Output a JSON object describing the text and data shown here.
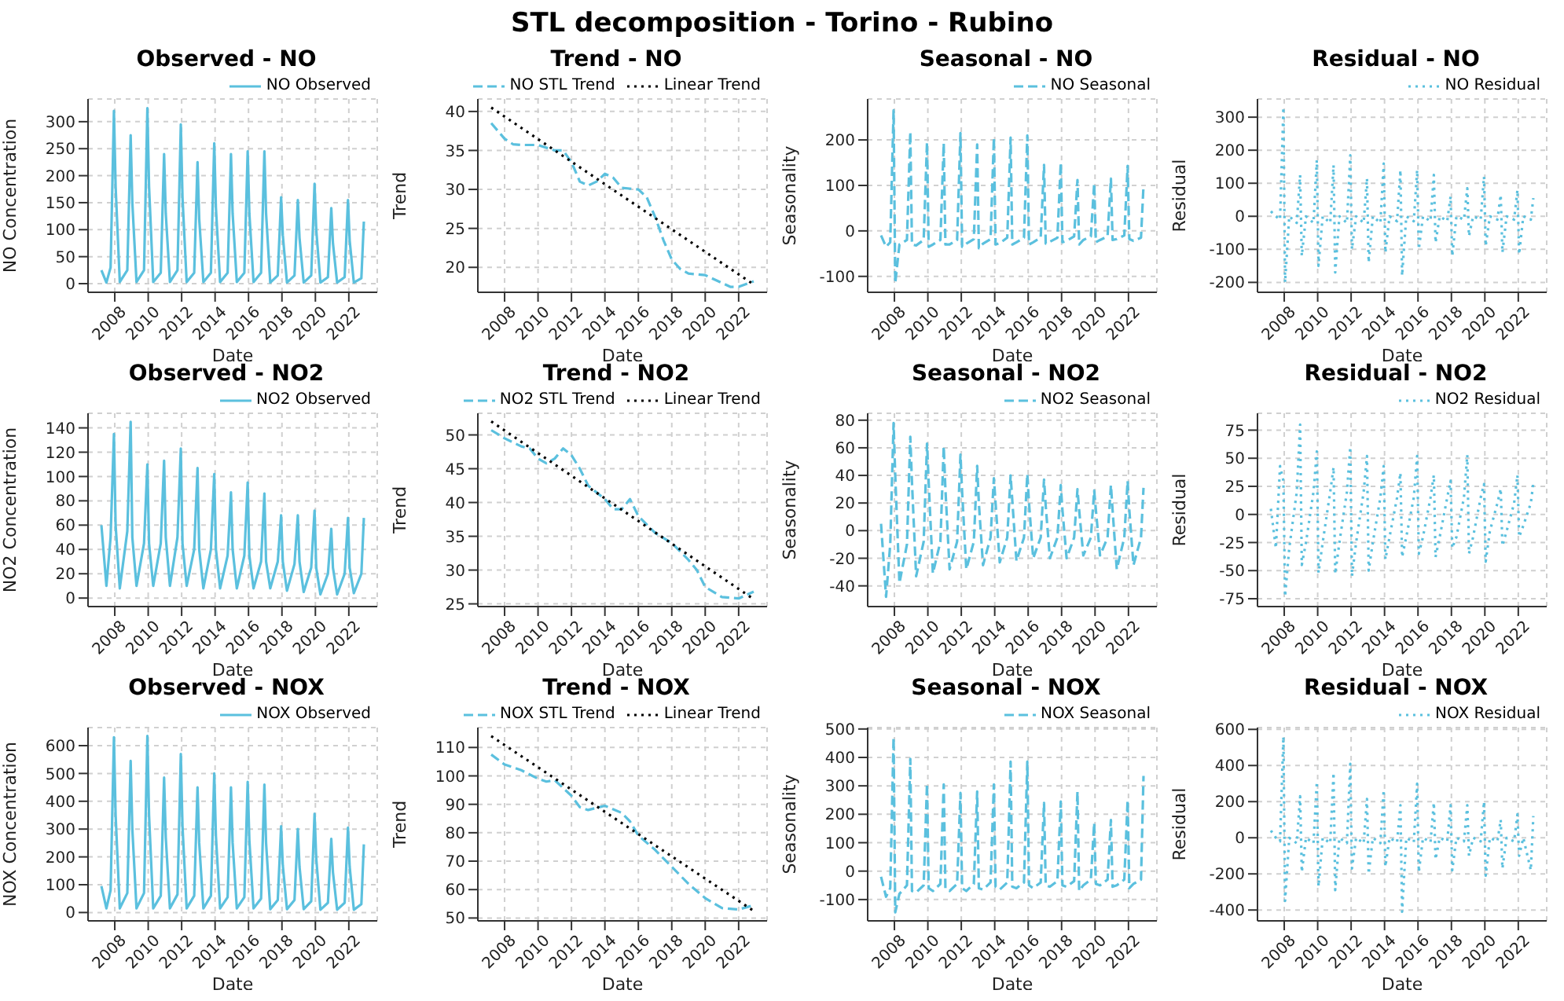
{
  "chart_data": [
    {
      "type": "line",
      "title": "Observed - NO",
      "annotations": [
        "STL decomposition - Torino - Rubino"
      ],
      "xlabel": "Date",
      "ylabel": "NO Concentration",
      "xlim": [
        2006.4,
        2023.7
      ],
      "xticks": [
        2008,
        2010,
        2012,
        2014,
        2016,
        2018,
        2020,
        2022
      ],
      "ylim": [
        -16,
        342
      ],
      "yticks": [
        0,
        50,
        100,
        150,
        200,
        250,
        300
      ],
      "grid": true,
      "legend": "top right",
      "x": [
        2007.2,
        2007.5,
        2007.75,
        2007.95,
        2008.05,
        2008.3,
        2008.75,
        2008.95,
        2009.05,
        2009.3,
        2009.75,
        2009.95,
        2010.05,
        2010.3,
        2010.75,
        2010.95,
        2011.05,
        2011.3,
        2011.75,
        2011.95,
        2012.05,
        2012.3,
        2012.75,
        2012.95,
        2013.05,
        2013.3,
        2013.75,
        2013.95,
        2014.05,
        2014.3,
        2014.75,
        2014.95,
        2015.05,
        2015.3,
        2015.75,
        2015.95,
        2016.05,
        2016.3,
        2016.75,
        2016.95,
        2017.05,
        2017.3,
        2017.75,
        2017.95,
        2018.05,
        2018.3,
        2018.75,
        2018.95,
        2019.05,
        2019.3,
        2019.75,
        2019.95,
        2020.05,
        2020.3,
        2020.75,
        2020.95,
        2021.05,
        2021.3,
        2021.75,
        2021.95,
        2022.05,
        2022.3,
        2022.75,
        2022.9
      ],
      "series": [
        {
          "name": "NO Observed",
          "color": "#5bc0de",
          "line_style": "solid",
          "values": [
            25,
            2,
            30,
            320,
            180,
            3,
            25,
            275,
            150,
            3,
            25,
            325,
            180,
            3,
            20,
            240,
            130,
            3,
            25,
            295,
            160,
            3,
            20,
            225,
            120,
            3,
            20,
            260,
            140,
            3,
            20,
            240,
            130,
            3,
            20,
            245,
            130,
            3,
            20,
            245,
            130,
            2,
            15,
            160,
            90,
            2,
            15,
            155,
            85,
            2,
            15,
            185,
            100,
            2,
            12,
            140,
            75,
            2,
            12,
            155,
            80,
            2,
            10,
            115
          ]
        }
      ]
    },
    {
      "type": "line",
      "title": "Trend - NO",
      "xlabel": "Date",
      "ylabel": "Trend",
      "xlim": [
        2006.4,
        2023.7
      ],
      "xticks": [
        2008,
        2010,
        2012,
        2014,
        2016,
        2018,
        2020,
        2022
      ],
      "ylim": [
        16.8,
        41.6
      ],
      "yticks": [
        20,
        25,
        30,
        35,
        40
      ],
      "grid": true,
      "legend": "top right",
      "series": [
        {
          "name": "NO STL Trend",
          "color": "#5bc0de",
          "line_style": "dashed",
          "x": [
            2007.2,
            2008,
            2008.5,
            2009,
            2010,
            2011,
            2011.5,
            2012,
            2012.5,
            2013,
            2013.5,
            2014,
            2014.5,
            2015,
            2016,
            2016.5,
            2017,
            2017.5,
            2018,
            2018.5,
            2019,
            2020,
            2021,
            2021.5,
            2022,
            2022.9
          ],
          "values": [
            38.5,
            36.5,
            35.8,
            35.7,
            35.7,
            35,
            35,
            33.5,
            31,
            30.5,
            31,
            32,
            31.5,
            30.2,
            30,
            29,
            26.5,
            23.5,
            21,
            19.8,
            19.2,
            19,
            18,
            17.5,
            17.5,
            18.2
          ]
        },
        {
          "name": "Linear Trend",
          "color": "#000000",
          "line_style": "dotted",
          "x": [
            2007.2,
            2022.9
          ],
          "values": [
            40.5,
            17.8
          ]
        }
      ]
    },
    {
      "type": "line",
      "title": "Seasonal - NO",
      "xlabel": "Date",
      "ylabel": "Seasonality",
      "xlim": [
        2006.4,
        2023.7
      ],
      "xticks": [
        2008,
        2010,
        2012,
        2014,
        2016,
        2018,
        2020,
        2022
      ],
      "ylim": [
        -135,
        290
      ],
      "yticks": [
        -100,
        0,
        100,
        200
      ],
      "grid": true,
      "legend": "top right",
      "x": [
        2007.2,
        2007.5,
        2007.75,
        2007.95,
        2008.05,
        2008.3,
        2008.75,
        2008.95,
        2009.05,
        2009.3,
        2009.75,
        2009.95,
        2010.05,
        2010.3,
        2010.75,
        2010.95,
        2011.05,
        2011.3,
        2011.75,
        2011.95,
        2012.05,
        2012.3,
        2012.75,
        2012.95,
        2013.05,
        2013.3,
        2013.75,
        2013.95,
        2014.05,
        2014.3,
        2014.75,
        2014.95,
        2015.05,
        2015.3,
        2015.75,
        2015.95,
        2016.05,
        2016.3,
        2016.75,
        2016.95,
        2017.05,
        2017.3,
        2017.75,
        2017.95,
        2018.05,
        2018.3,
        2018.75,
        2018.95,
        2019.05,
        2019.3,
        2019.75,
        2019.95,
        2020.05,
        2020.3,
        2020.75,
        2020.95,
        2021.05,
        2021.3,
        2021.75,
        2021.95,
        2022.05,
        2022.3,
        2022.75,
        2022.9
      ],
      "series": [
        {
          "name": "NO Seasonal",
          "color": "#5bc0de",
          "line_style": "dashed",
          "values": [
            -10,
            -35,
            -25,
            265,
            -115,
            -30,
            -20,
            218,
            -30,
            -32,
            -20,
            195,
            -35,
            -30,
            -20,
            193,
            -30,
            -30,
            -20,
            215,
            -35,
            -28,
            -18,
            190,
            -38,
            -28,
            -18,
            205,
            -30,
            -27,
            -15,
            205,
            -30,
            -25,
            -15,
            210,
            -30,
            -25,
            -15,
            145,
            -28,
            -24,
            -15,
            150,
            -25,
            -22,
            -12,
            112,
            -30,
            -20,
            -12,
            105,
            -25,
            -20,
            -12,
            115,
            -20,
            -18,
            -10,
            143,
            -18,
            -22,
            -15,
            100
          ]
        }
      ]
    },
    {
      "type": "line",
      "title": "Residual - NO",
      "xlabel": "Date",
      "ylabel": "Residual",
      "xlim": [
        2006.4,
        2023.7
      ],
      "xticks": [
        2008,
        2010,
        2012,
        2014,
        2016,
        2018,
        2020,
        2022
      ],
      "ylim": [
        -230,
        355
      ],
      "yticks": [
        -200,
        -100,
        0,
        100,
        200,
        300
      ],
      "grid": true,
      "legend": "top right",
      "x": [
        2007.2,
        2007.5,
        2007.75,
        2007.95,
        2008.05,
        2008.3,
        2008.75,
        2008.95,
        2009.05,
        2009.3,
        2009.75,
        2009.95,
        2010.05,
        2010.3,
        2010.75,
        2010.95,
        2011.05,
        2011.3,
        2011.75,
        2011.95,
        2012.05,
        2012.3,
        2012.75,
        2012.95,
        2013.05,
        2013.3,
        2013.75,
        2013.95,
        2014.05,
        2014.3,
        2014.75,
        2014.95,
        2015.05,
        2015.3,
        2015.75,
        2015.95,
        2016.05,
        2016.3,
        2016.75,
        2016.95,
        2017.05,
        2017.3,
        2017.75,
        2017.95,
        2018.05,
        2018.3,
        2018.75,
        2018.95,
        2019.05,
        2019.3,
        2019.75,
        2019.95,
        2020.05,
        2020.3,
        2020.75,
        2020.95,
        2021.05,
        2021.3,
        2021.75,
        2021.95,
        2022.05,
        2022.3,
        2022.75,
        2022.9
      ],
      "series": [
        {
          "name": "NO Residual",
          "color": "#5bc0de",
          "line_style": "dotted",
          "values": [
            15,
            0,
            -10,
            330,
            -200,
            0,
            -20,
            125,
            -120,
            0,
            -20,
            170,
            -150,
            0,
            -20,
            155,
            -170,
            0,
            -20,
            185,
            -100,
            0,
            -20,
            115,
            -140,
            0,
            -20,
            160,
            -110,
            0,
            -15,
            140,
            -180,
            0,
            -15,
            140,
            -100,
            0,
            -15,
            125,
            -80,
            0,
            -15,
            60,
            -120,
            0,
            -10,
            85,
            -60,
            0,
            -10,
            120,
            -90,
            0,
            -10,
            65,
            -110,
            0,
            -10,
            80,
            -115,
            0,
            -10,
            55
          ]
        }
      ]
    },
    {
      "type": "line",
      "title": "Observed - NO2",
      "xlabel": "Date",
      "ylabel": "NO2 Concentration",
      "xlim": [
        2006.4,
        2023.7
      ],
      "xticks": [
        2008,
        2010,
        2012,
        2014,
        2016,
        2018,
        2020,
        2022
      ],
      "ylim": [
        -7,
        152
      ],
      "yticks": [
        0,
        20,
        40,
        60,
        80,
        100,
        120,
        140
      ],
      "grid": true,
      "legend": "top right",
      "x": [
        2007.2,
        2007.5,
        2007.75,
        2007.95,
        2008.05,
        2008.3,
        2008.75,
        2008.95,
        2009.05,
        2009.3,
        2009.75,
        2009.95,
        2010.05,
        2010.3,
        2010.75,
        2010.95,
        2011.05,
        2011.3,
        2011.75,
        2011.95,
        2012.05,
        2012.3,
        2012.75,
        2012.95,
        2013.05,
        2013.3,
        2013.75,
        2013.95,
        2014.05,
        2014.3,
        2014.75,
        2014.95,
        2015.05,
        2015.3,
        2015.75,
        2015.95,
        2016.05,
        2016.3,
        2016.75,
        2016.95,
        2017.05,
        2017.3,
        2017.75,
        2017.95,
        2018.05,
        2018.3,
        2018.75,
        2018.95,
        2019.05,
        2019.3,
        2019.75,
        2019.95,
        2020.05,
        2020.3,
        2020.75,
        2020.95,
        2021.05,
        2021.3,
        2021.75,
        2021.95,
        2022.05,
        2022.3,
        2022.75,
        2022.9
      ],
      "series": [
        {
          "name": "NO2 Observed",
          "color": "#5bc0de",
          "line_style": "solid",
          "values": [
            60,
            10,
            50,
            135,
            60,
            8,
            55,
            145,
            50,
            10,
            45,
            110,
            45,
            10,
            45,
            113,
            50,
            10,
            50,
            123,
            45,
            10,
            40,
            107,
            40,
            8,
            40,
            102,
            40,
            8,
            35,
            87,
            40,
            8,
            35,
            95,
            35,
            8,
            30,
            86,
            30,
            8,
            30,
            68,
            30,
            6,
            28,
            68,
            30,
            5,
            25,
            72,
            25,
            3,
            20,
            57,
            25,
            3,
            20,
            66,
            25,
            4,
            20,
            66
          ]
        }
      ]
    },
    {
      "type": "line",
      "title": "Trend - NO2",
      "xlabel": "Date",
      "ylabel": "Trend",
      "xlim": [
        2006.4,
        2023.7
      ],
      "xticks": [
        2008,
        2010,
        2012,
        2014,
        2016,
        2018,
        2020,
        2022
      ],
      "ylim": [
        24.6,
        53.2
      ],
      "yticks": [
        25,
        30,
        35,
        40,
        45,
        50
      ],
      "grid": true,
      "legend": "top right",
      "series": [
        {
          "name": "NO2 STL Trend",
          "color": "#5bc0de",
          "line_style": "dashed",
          "x": [
            2007.2,
            2008,
            2009,
            2009.5,
            2010,
            2010.5,
            2011,
            2011.5,
            2012,
            2012.5,
            2013,
            2014,
            2014.5,
            2015,
            2015.5,
            2016,
            2017,
            2018,
            2019,
            2019.5,
            2020,
            2021,
            2022,
            2022.9
          ],
          "values": [
            50.7,
            49.5,
            48.3,
            48,
            46.5,
            45.8,
            46.5,
            48,
            47,
            45,
            42.5,
            40.5,
            39,
            39,
            40.5,
            38,
            35.5,
            34,
            31.5,
            30,
            27.5,
            26,
            25.8,
            26.8
          ]
        },
        {
          "name": "Linear Trend",
          "color": "#000000",
          "line_style": "dotted",
          "x": [
            2007.2,
            2022.9
          ],
          "values": [
            52,
            25.7
          ]
        }
      ]
    },
    {
      "type": "line",
      "title": "Seasonal - NO2",
      "xlabel": "Date",
      "ylabel": "Seasonality",
      "xlim": [
        2006.4,
        2023.7
      ],
      "xticks": [
        2008,
        2010,
        2012,
        2014,
        2016,
        2018,
        2020,
        2022
      ],
      "ylim": [
        -55,
        85
      ],
      "yticks": [
        -40,
        -20,
        0,
        20,
        40,
        60,
        80
      ],
      "grid": true,
      "legend": "top right",
      "x": [
        2007.2,
        2007.5,
        2007.75,
        2007.95,
        2008.05,
        2008.3,
        2008.75,
        2008.95,
        2009.05,
        2009.3,
        2009.75,
        2009.95,
        2010.05,
        2010.3,
        2010.75,
        2010.95,
        2011.05,
        2011.3,
        2011.75,
        2011.95,
        2012.05,
        2012.3,
        2012.75,
        2012.95,
        2013.05,
        2013.3,
        2013.75,
        2013.95,
        2014.05,
        2014.3,
        2014.75,
        2014.95,
        2015.05,
        2015.3,
        2015.75,
        2015.95,
        2016.05,
        2016.3,
        2016.75,
        2016.95,
        2017.05,
        2017.3,
        2017.75,
        2017.95,
        2018.05,
        2018.3,
        2018.75,
        2018.95,
        2019.05,
        2019.3,
        2019.75,
        2019.95,
        2020.05,
        2020.3,
        2020.75,
        2020.95,
        2021.05,
        2021.3,
        2021.75,
        2021.95,
        2022.05,
        2022.3,
        2022.75,
        2022.9
      ],
      "series": [
        {
          "name": "NO2 Seasonal",
          "color": "#5bc0de",
          "line_style": "dashed",
          "values": [
            5,
            -48,
            -10,
            78,
            40,
            -38,
            -10,
            68,
            35,
            -33,
            -8,
            63,
            35,
            -31,
            -8,
            61,
            30,
            -28,
            -8,
            55,
            28,
            -28,
            -8,
            47,
            20,
            -25,
            -5,
            38,
            20,
            -23,
            -5,
            40,
            22,
            -22,
            -5,
            41,
            20,
            -20,
            -5,
            37,
            18,
            -20,
            -5,
            33,
            15,
            -20,
            -5,
            30,
            15,
            -18,
            -5,
            29,
            15,
            -18,
            -5,
            33,
            15,
            -28,
            -5,
            36,
            15,
            -25,
            -5,
            31
          ]
        }
      ]
    },
    {
      "type": "line",
      "title": "Residual - NO2",
      "xlabel": "Date",
      "ylabel": "Residual",
      "xlim": [
        2006.4,
        2023.7
      ],
      "xticks": [
        2008,
        2010,
        2012,
        2014,
        2016,
        2018,
        2020,
        2022
      ],
      "ylim": [
        -82,
        90
      ],
      "yticks": [
        -75,
        -50,
        -25,
        0,
        25,
        50,
        75
      ],
      "grid": true,
      "legend": "top right",
      "x": [
        2007.2,
        2007.5,
        2007.75,
        2007.95,
        2008.05,
        2008.3,
        2008.75,
        2008.95,
        2009.05,
        2009.3,
        2009.75,
        2009.95,
        2010.05,
        2010.3,
        2010.75,
        2010.95,
        2011.05,
        2011.3,
        2011.75,
        2011.95,
        2012.05,
        2012.3,
        2012.75,
        2012.95,
        2013.05,
        2013.3,
        2013.75,
        2013.95,
        2014.05,
        2014.3,
        2014.75,
        2014.95,
        2015.05,
        2015.3,
        2015.75,
        2015.95,
        2016.05,
        2016.3,
        2016.75,
        2016.95,
        2017.05,
        2017.3,
        2017.75,
        2017.95,
        2018.05,
        2018.3,
        2018.75,
        2018.95,
        2019.05,
        2019.3,
        2019.75,
        2019.95,
        2020.05,
        2020.3,
        2020.75,
        2020.95,
        2021.05,
        2021.3,
        2021.75,
        2021.95,
        2022.05,
        2022.3,
        2022.75,
        2022.9
      ],
      "series": [
        {
          "name": "NO2 Residual",
          "color": "#5bc0de",
          "line_style": "dotted",
          "values": [
            5,
            -30,
            43,
            30,
            -73,
            -30,
            20,
            80,
            -45,
            -25,
            20,
            56,
            -52,
            -25,
            20,
            42,
            -53,
            -25,
            20,
            60,
            -55,
            -25,
            20,
            52,
            -50,
            -25,
            15,
            43,
            -40,
            -20,
            15,
            37,
            -38,
            -20,
            15,
            52,
            -35,
            -20,
            15,
            35,
            -38,
            -20,
            15,
            30,
            -30,
            -20,
            15,
            53,
            -35,
            -20,
            15,
            27,
            -42,
            -15,
            10,
            23,
            -28,
            -15,
            10,
            35,
            -20,
            -10,
            10,
            28
          ]
        }
      ]
    },
    {
      "type": "line",
      "title": "Observed - NOX",
      "xlabel": "Date",
      "ylabel": "NOX Concentration",
      "xlim": [
        2006.4,
        2023.7
      ],
      "xticks": [
        2008,
        2010,
        2012,
        2014,
        2016,
        2018,
        2020,
        2022
      ],
      "ylim": [
        -30,
        665
      ],
      "yticks": [
        0,
        100,
        200,
        300,
        400,
        500,
        600
      ],
      "grid": true,
      "legend": "top right",
      "x": [
        2007.2,
        2007.5,
        2007.75,
        2007.95,
        2008.05,
        2008.3,
        2008.75,
        2008.95,
        2009.05,
        2009.3,
        2009.75,
        2009.95,
        2010.05,
        2010.3,
        2010.75,
        2010.95,
        2011.05,
        2011.3,
        2011.75,
        2011.95,
        2012.05,
        2012.3,
        2012.75,
        2012.95,
        2013.05,
        2013.3,
        2013.75,
        2013.95,
        2014.05,
        2014.3,
        2014.75,
        2014.95,
        2015.05,
        2015.3,
        2015.75,
        2015.95,
        2016.05,
        2016.3,
        2016.75,
        2016.95,
        2017.05,
        2017.3,
        2017.75,
        2017.95,
        2018.05,
        2018.3,
        2018.75,
        2018.95,
        2019.05,
        2019.3,
        2019.75,
        2019.95,
        2020.05,
        2020.3,
        2020.75,
        2020.95,
        2021.05,
        2021.3,
        2021.75,
        2021.95,
        2022.05,
        2022.3,
        2022.75,
        2022.9
      ],
      "series": [
        {
          "name": "NOX Observed",
          "color": "#5bc0de",
          "line_style": "solid",
          "values": [
            95,
            15,
            80,
            630,
            350,
            15,
            70,
            545,
            300,
            15,
            70,
            635,
            350,
            15,
            60,
            485,
            270,
            15,
            65,
            570,
            310,
            15,
            60,
            450,
            250,
            15,
            60,
            500,
            275,
            15,
            55,
            450,
            250,
            15,
            55,
            470,
            260,
            15,
            50,
            460,
            250,
            12,
            45,
            310,
            170,
            12,
            45,
            300,
            165,
            12,
            40,
            355,
            195,
            10,
            35,
            265,
            145,
            10,
            35,
            305,
            165,
            10,
            30,
            245
          ]
        }
      ]
    },
    {
      "type": "line",
      "title": "Trend - NOX",
      "xlabel": "Date",
      "ylabel": "Trend",
      "xlim": [
        2006.4,
        2023.7
      ],
      "xticks": [
        2008,
        2010,
        2012,
        2014,
        2016,
        2018,
        2020,
        2022
      ],
      "ylim": [
        49,
        117
      ],
      "yticks": [
        50,
        60,
        70,
        80,
        90,
        100,
        110
      ],
      "grid": true,
      "legend": "top right",
      "series": [
        {
          "name": "NOX STL Trend",
          "color": "#5bc0de",
          "line_style": "dashed",
          "x": [
            2007.2,
            2008,
            2009,
            2010,
            2010.5,
            2011,
            2012,
            2012.5,
            2013,
            2014,
            2015,
            2015.5,
            2016,
            2017,
            2018,
            2019,
            2020,
            2021,
            2022,
            2022.9
          ],
          "values": [
            107.5,
            104,
            102,
            99,
            98,
            98.5,
            93,
            89,
            88,
            89.5,
            87,
            84,
            79,
            74,
            68,
            62,
            57,
            53.5,
            53,
            54.5
          ]
        },
        {
          "name": "Linear Trend",
          "color": "#000000",
          "line_style": "dotted",
          "x": [
            2007.2,
            2022.9
          ],
          "values": [
            114,
            52.5
          ]
        }
      ]
    },
    {
      "type": "line",
      "title": "Seasonal - NOX",
      "xlabel": "Date",
      "ylabel": "Seasonality",
      "xlim": [
        2006.4,
        2023.7
      ],
      "xticks": [
        2008,
        2010,
        2012,
        2014,
        2016,
        2018,
        2020,
        2022
      ],
      "ylim": [
        -175,
        505
      ],
      "yticks": [
        -100,
        0,
        100,
        200,
        300,
        400,
        500
      ],
      "grid": true,
      "legend": "top right",
      "x": [
        2007.2,
        2007.5,
        2007.75,
        2007.95,
        2008.05,
        2008.3,
        2008.75,
        2008.95,
        2009.05,
        2009.3,
        2009.75,
        2009.95,
        2010.05,
        2010.3,
        2010.75,
        2010.95,
        2011.05,
        2011.3,
        2011.75,
        2011.95,
        2012.05,
        2012.3,
        2012.75,
        2012.95,
        2013.05,
        2013.3,
        2013.75,
        2013.95,
        2014.05,
        2014.3,
        2014.75,
        2014.95,
        2015.05,
        2015.3,
        2015.75,
        2015.95,
        2016.05,
        2016.3,
        2016.75,
        2016.95,
        2017.05,
        2017.3,
        2017.75,
        2017.95,
        2018.05,
        2018.3,
        2018.75,
        2018.95,
        2019.05,
        2019.3,
        2019.75,
        2019.95,
        2020.05,
        2020.3,
        2020.75,
        2020.95,
        2021.05,
        2021.3,
        2021.75,
        2021.95,
        2022.05,
        2022.3,
        2022.75,
        2022.9
      ],
      "series": [
        {
          "name": "NOX Seasonal",
          "color": "#5bc0de",
          "line_style": "dashed",
          "values": [
            -20,
            -90,
            -60,
            470,
            -145,
            -80,
            -50,
            395,
            -70,
            -75,
            -50,
            308,
            -60,
            -70,
            -45,
            305,
            -60,
            -70,
            -45,
            275,
            -60,
            -70,
            -45,
            280,
            -60,
            -65,
            -40,
            305,
            -55,
            -65,
            -40,
            385,
            -55,
            -60,
            -40,
            385,
            -50,
            -60,
            -40,
            240,
            -50,
            -55,
            -35,
            245,
            -50,
            -55,
            -35,
            280,
            -70,
            -50,
            -30,
            170,
            -45,
            -50,
            -30,
            180,
            -55,
            -50,
            -30,
            250,
            -60,
            -45,
            -30,
            335
          ]
        }
      ]
    },
    {
      "type": "line",
      "title": "Residual - NOX",
      "xlabel": "Date",
      "ylabel": "Residual",
      "xlim": [
        2006.4,
        2023.7
      ],
      "xticks": [
        2008,
        2010,
        2012,
        2014,
        2016,
        2018,
        2020,
        2022
      ],
      "ylim": [
        -460,
        610
      ],
      "yticks": [
        -400,
        -200,
        0,
        200,
        400,
        600
      ],
      "grid": true,
      "legend": "top right",
      "x": [
        2007.2,
        2007.5,
        2007.75,
        2007.95,
        2008.05,
        2008.3,
        2008.75,
        2008.95,
        2009.05,
        2009.3,
        2009.75,
        2009.95,
        2010.05,
        2010.3,
        2010.75,
        2010.95,
        2011.05,
        2011.3,
        2011.75,
        2011.95,
        2012.05,
        2012.3,
        2012.75,
        2012.95,
        2013.05,
        2013.3,
        2013.75,
        2013.95,
        2014.05,
        2014.3,
        2014.75,
        2014.95,
        2015.05,
        2015.3,
        2015.75,
        2015.95,
        2016.05,
        2016.3,
        2016.75,
        2016.95,
        2017.05,
        2017.3,
        2017.75,
        2017.95,
        2018.05,
        2018.3,
        2018.75,
        2018.95,
        2019.05,
        2019.3,
        2019.75,
        2019.95,
        2020.05,
        2020.3,
        2020.75,
        2020.95,
        2021.05,
        2021.3,
        2021.75,
        2021.95,
        2022.05,
        2022.3,
        2022.75,
        2022.9
      ],
      "series": [
        {
          "name": "NOX Residual",
          "color": "#5bc0de",
          "line_style": "dotted",
          "values": [
            40,
            0,
            -20,
            560,
            -350,
            0,
            -30,
            230,
            -190,
            0,
            -30,
            310,
            -270,
            0,
            -30,
            360,
            -290,
            0,
            -30,
            410,
            -170,
            0,
            -30,
            215,
            -200,
            0,
            -30,
            265,
            -160,
            0,
            -25,
            180,
            -410,
            0,
            -25,
            300,
            -190,
            0,
            -25,
            195,
            -120,
            0,
            -20,
            180,
            -180,
            0,
            -20,
            180,
            -100,
            0,
            -20,
            200,
            -210,
            0,
            -20,
            100,
            -170,
            0,
            -20,
            130,
            -100,
            0,
            -180,
            120
          ]
        }
      ]
    }
  ]
}
